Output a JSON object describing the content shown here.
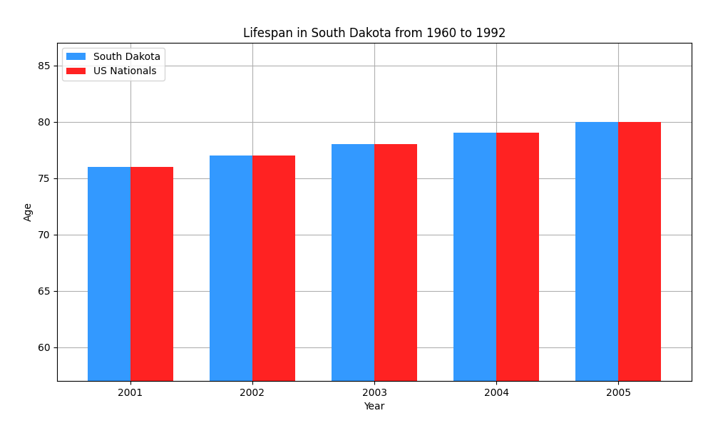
{
  "chart_data": {
    "type": "bar",
    "title": "Lifespan in South Dakota from 1960 to 1992",
    "x_label": "Year",
    "y_label": "Age",
    "categories": [
      "2001",
      "2002",
      "2003",
      "2004",
      "2005"
    ],
    "series": [
      {
        "name": "South Dakota",
        "color": "#3399ff",
        "values": [
          76,
          77,
          78,
          79,
          80
        ]
      },
      {
        "name": "US Nationals",
        "color": "#ff2222",
        "values": [
          76,
          77,
          78,
          79,
          80
        ]
      }
    ],
    "ylim": [
      57,
      87
    ],
    "yticks": [
      60,
      65,
      70,
      75,
      80,
      85
    ],
    "grid": true,
    "legend": "upper left"
  }
}
